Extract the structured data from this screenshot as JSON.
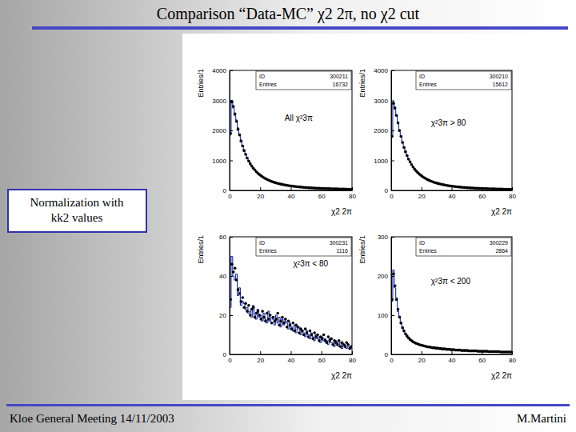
{
  "title": "Comparison “Data-MC” χ2 2π, no χ2 cut",
  "side_note": [
    "Normalization with",
    "kk2 values"
  ],
  "footer": {
    "left": "Kloe General Meeting 14/11/2003",
    "right": "M.Martini"
  },
  "chart_data": [
    {
      "type": "histogram",
      "annotation": "All χ²3π",
      "xlabel": "χ2 2π",
      "ylabel": "Entries/1",
      "stats": [
        {
          "label": "ID",
          "value": "300211"
        },
        {
          "label": "Entries",
          "value": 16732
        }
      ],
      "bins": [
        0,
        1,
        2,
        3,
        4,
        5,
        6,
        7,
        8,
        9,
        10,
        11,
        12,
        13,
        14,
        15,
        16,
        17,
        18,
        19,
        20,
        21,
        22,
        23,
        24,
        25,
        26,
        27,
        28,
        29,
        30,
        31,
        32,
        33,
        34,
        35,
        36,
        37,
        38,
        39,
        40,
        41,
        42,
        43,
        44,
        45,
        46,
        47,
        48,
        49,
        50,
        51,
        52,
        53,
        54,
        55,
        56,
        57,
        58,
        59,
        60,
        61,
        62,
        63,
        64,
        65,
        66,
        67,
        68,
        69,
        70,
        71,
        72,
        73,
        74,
        75,
        76,
        77,
        78,
        79,
        80
      ],
      "xlim": [
        0,
        80
      ],
      "xticks": [
        0,
        20,
        40,
        60,
        80
      ],
      "ylim": [
        0,
        4000
      ],
      "yticks": [
        0,
        1000,
        2000,
        3000,
        4000
      ],
      "series": [
        {
          "type": "scatter",
          "marker": "circle",
          "color": "#000000",
          "values": [
            1900,
            2950,
            2800,
            2550,
            2300,
            2050,
            1850,
            1650,
            1480,
            1330,
            1200,
            1080,
            980,
            890,
            810,
            740,
            680,
            620,
            570,
            530,
            490,
            455,
            420,
            390,
            365,
            340,
            318,
            298,
            280,
            263,
            248,
            234,
            221,
            209,
            198,
            188,
            178,
            169,
            161,
            153,
            146,
            139,
            133,
            127,
            121,
            116,
            111,
            106,
            102,
            98,
            94,
            90,
            87,
            84,
            81,
            78,
            75,
            72,
            70,
            68,
            66,
            64,
            62,
            60,
            58,
            56,
            54,
            53,
            51,
            50,
            49,
            47,
            46,
            45,
            44,
            43,
            42,
            41,
            40,
            39
          ]
        },
        {
          "type": "line",
          "line_style": "step",
          "color": "#1a2db0",
          "values": [
            1850,
            3000,
            2750,
            2500,
            2350,
            2000,
            1880,
            1620,
            1500,
            1300,
            1220,
            1060,
            990,
            870,
            820,
            730,
            690,
            610,
            580,
            520,
            495,
            450,
            425,
            385,
            370,
            335,
            320,
            295,
            283,
            260,
            250,
            232,
            223,
            207,
            200,
            186,
            180,
            167,
            162,
            151,
            148,
            137,
            134,
            125,
            122,
            114,
            112,
            104,
            103,
            97,
            95,
            89,
            88,
            83,
            82,
            77,
            76,
            71,
            71,
            67,
            67,
            63,
            63,
            59,
            59,
            55,
            55,
            52,
            52,
            49,
            50,
            46,
            47,
            44,
            45,
            42,
            43,
            40,
            41,
            38
          ]
        }
      ]
    },
    {
      "type": "histogram",
      "annotation": "χ²3π > 80",
      "xlabel": "χ2 2π",
      "ylabel": "Entries/1",
      "stats": [
        {
          "label": "ID",
          "value": "300210"
        },
        {
          "label": "Entries",
          "value": 15612
        }
      ],
      "bins": [
        0,
        1,
        2,
        3,
        4,
        5,
        6,
        7,
        8,
        9,
        10,
        11,
        12,
        13,
        14,
        15,
        16,
        17,
        18,
        19,
        20,
        21,
        22,
        23,
        24,
        25,
        26,
        27,
        28,
        29,
        30,
        31,
        32,
        33,
        34,
        35,
        36,
        37,
        38,
        39,
        40,
        41,
        42,
        43,
        44,
        45,
        46,
        47,
        48,
        49,
        50,
        51,
        52,
        53,
        54,
        55,
        56,
        57,
        58,
        59,
        60,
        61,
        62,
        63,
        64,
        65,
        66,
        67,
        68,
        69,
        70,
        71,
        72,
        73,
        74,
        75,
        76,
        77,
        78,
        79,
        80
      ],
      "xlim": [
        0,
        80
      ],
      "xticks": [
        0,
        20,
        40,
        60,
        80
      ],
      "ylim": [
        0,
        4000
      ],
      "yticks": [
        0,
        1000,
        2000,
        3000,
        4000
      ],
      "series": [
        {
          "type": "scatter",
          "marker": "circle",
          "color": "#000000",
          "values": [
            1800,
            2900,
            2750,
            2500,
            2250,
            2000,
            1800,
            1600,
            1430,
            1290,
            1160,
            1040,
            950,
            860,
            780,
            710,
            650,
            600,
            550,
            510,
            470,
            435,
            405,
            375,
            350,
            325,
            305,
            285,
            268,
            252,
            238,
            224,
            212,
            200,
            190,
            180,
            171,
            162,
            154,
            147,
            140,
            133,
            127,
            121,
            116,
            111,
            106,
            101,
            97,
            93,
            90,
            86,
            83,
            80,
            77,
            74,
            71,
            69,
            67,
            65,
            63,
            61,
            59,
            57,
            55,
            53,
            52,
            50,
            49,
            48,
            46,
            45,
            44,
            43,
            42,
            41,
            40,
            39,
            38,
            37
          ]
        },
        {
          "type": "line",
          "line_style": "step",
          "color": "#1a2db0",
          "values": [
            1780,
            2950,
            2700,
            2480,
            2280,
            1960,
            1820,
            1580,
            1450,
            1270,
            1170,
            1030,
            955,
            850,
            790,
            700,
            660,
            590,
            555,
            500,
            475,
            430,
            410,
            370,
            355,
            320,
            308,
            282,
            270,
            249,
            240,
            221,
            214,
            198,
            192,
            178,
            173,
            160,
            156,
            145,
            142,
            131,
            129,
            119,
            118,
            109,
            108,
            99,
            99,
            91,
            92,
            85,
            85,
            79,
            79,
            73,
            73,
            68,
            68,
            64,
            64,
            60,
            60,
            56,
            56,
            52,
            53,
            49,
            50,
            47,
            47,
            44,
            45,
            42,
            43,
            40,
            41,
            38,
            39,
            36
          ]
        }
      ]
    },
    {
      "type": "histogram",
      "annotation": "χ²3π < 80",
      "xlabel": "χ2 2π",
      "ylabel": "Entries/1",
      "stats": [
        {
          "label": "ID",
          "value": "300231"
        },
        {
          "label": "Entries",
          "value": 1116
        }
      ],
      "bins": [
        0,
        1,
        2,
        3,
        4,
        5,
        6,
        7,
        8,
        9,
        10,
        11,
        12,
        13,
        14,
        15,
        16,
        17,
        18,
        19,
        20,
        21,
        22,
        23,
        24,
        25,
        26,
        27,
        28,
        29,
        30,
        31,
        32,
        33,
        34,
        35,
        36,
        37,
        38,
        39,
        40,
        41,
        42,
        43,
        44,
        45,
        46,
        47,
        48,
        49,
        50,
        51,
        52,
        53,
        54,
        55,
        56,
        57,
        58,
        59,
        60,
        61,
        62,
        63,
        64,
        65,
        66,
        67,
        68,
        69,
        70,
        71,
        72,
        73,
        74,
        75,
        76,
        77,
        78,
        79,
        80
      ],
      "xlim": [
        0,
        80
      ],
      "xticks": [
        0,
        20,
        40,
        60,
        80
      ],
      "ylim": [
        0,
        60
      ],
      "yticks": [
        0,
        20,
        40,
        60
      ],
      "series": [
        {
          "type": "scatter",
          "marker": "circle",
          "color": "#000000",
          "values": [
            28,
            46,
            42,
            44,
            38,
            33,
            31,
            27,
            29,
            24,
            26,
            22,
            25,
            20,
            23,
            24,
            19,
            21,
            22,
            20,
            18,
            22,
            19,
            17,
            21,
            18,
            20,
            16,
            19,
            17,
            18,
            21,
            15,
            17,
            19,
            16,
            18,
            14,
            17,
            15,
            13,
            16,
            12,
            15,
            14,
            11,
            13,
            12,
            10,
            13,
            11,
            9,
            12,
            10,
            8,
            11,
            9,
            10,
            7,
            9,
            8,
            10,
            7,
            6,
            9,
            7,
            8,
            5,
            7,
            6,
            5,
            7,
            4,
            6,
            5,
            4,
            6,
            5,
            3,
            4
          ]
        },
        {
          "type": "line",
          "line_style": "step",
          "color": "#1a2db0",
          "values": [
            24,
            50,
            40,
            38,
            41,
            30,
            34,
            25,
            27,
            26,
            23,
            24,
            21,
            22,
            19,
            25,
            20,
            18,
            23,
            19,
            20,
            17,
            21,
            18,
            16,
            22,
            17,
            19,
            18,
            15,
            20,
            16,
            19,
            14,
            18,
            15,
            17,
            16,
            13,
            16,
            14,
            12,
            15,
            11,
            13,
            14,
            10,
            12,
            11,
            9,
            12,
            10,
            8,
            11,
            9,
            7,
            10,
            8,
            9,
            6,
            9,
            7,
            8,
            7,
            5,
            8,
            6,
            6,
            4,
            7,
            6,
            4,
            6,
            3,
            5,
            5,
            3,
            4,
            4,
            3
          ]
        }
      ]
    },
    {
      "type": "histogram",
      "annotation": "χ²3π < 200",
      "xlabel": "χ2 2π",
      "ylabel": "Entries/1",
      "stats": [
        {
          "label": "ID",
          "value": "300229"
        },
        {
          "label": "Entries",
          "value": 2864
        }
      ],
      "bins": [
        0,
        1,
        2,
        3,
        4,
        5,
        6,
        7,
        8,
        9,
        10,
        11,
        12,
        13,
        14,
        15,
        16,
        17,
        18,
        19,
        20,
        21,
        22,
        23,
        24,
        25,
        26,
        27,
        28,
        29,
        30,
        31,
        32,
        33,
        34,
        35,
        36,
        37,
        38,
        39,
        40,
        41,
        42,
        43,
        44,
        45,
        46,
        47,
        48,
        49,
        50,
        51,
        52,
        53,
        54,
        55,
        56,
        57,
        58,
        59,
        60,
        61,
        62,
        63,
        64,
        65,
        66,
        67,
        68,
        69,
        70,
        71,
        72,
        73,
        74,
        75,
        76,
        77,
        78,
        79,
        80
      ],
      "xlim": [
        0,
        80
      ],
      "xticks": [
        0,
        20,
        40,
        60,
        80
      ],
      "ylim": [
        0,
        300
      ],
      "yticks": [
        0,
        100,
        200,
        300
      ],
      "series": [
        {
          "type": "scatter",
          "marker": "circle",
          "color": "#000000",
          "values": [
            140,
            205,
            175,
            140,
            115,
            95,
            80,
            68,
            60,
            52,
            47,
            42,
            38,
            35,
            32,
            30,
            28,
            27,
            25,
            24,
            23,
            22,
            21,
            20,
            19,
            19,
            18,
            17,
            17,
            16,
            16,
            15,
            15,
            14,
            14,
            14,
            13,
            13,
            13,
            12,
            12,
            12,
            11,
            11,
            11,
            11,
            10,
            10,
            10,
            10,
            10,
            9,
            9,
            9,
            9,
            9,
            9,
            8,
            8,
            8,
            8,
            8,
            8,
            8,
            7,
            7,
            7,
            7,
            7,
            7,
            7,
            7,
            6,
            6,
            6,
            6,
            6,
            6,
            6,
            6
          ]
        },
        {
          "type": "line",
          "line_style": "step",
          "color": "#1a2db0",
          "values": [
            135,
            215,
            170,
            145,
            110,
            98,
            78,
            70,
            58,
            54,
            45,
            43,
            37,
            36,
            31,
            31,
            27,
            28,
            24,
            25,
            22,
            23,
            20,
            21,
            18,
            20,
            17,
            18,
            16,
            17,
            15,
            16,
            14,
            15,
            13,
            15,
            12,
            14,
            12,
            13,
            11,
            13,
            11,
            12,
            10,
            11,
            10,
            11,
            9,
            10,
            9,
            10,
            9,
            9,
            8,
            9,
            8,
            9,
            8,
            8,
            7,
            8,
            7,
            8,
            7,
            7,
            6,
            7,
            6,
            7,
            6,
            7,
            6,
            6,
            5,
            6,
            5,
            6,
            5,
            6
          ]
        }
      ]
    }
  ]
}
